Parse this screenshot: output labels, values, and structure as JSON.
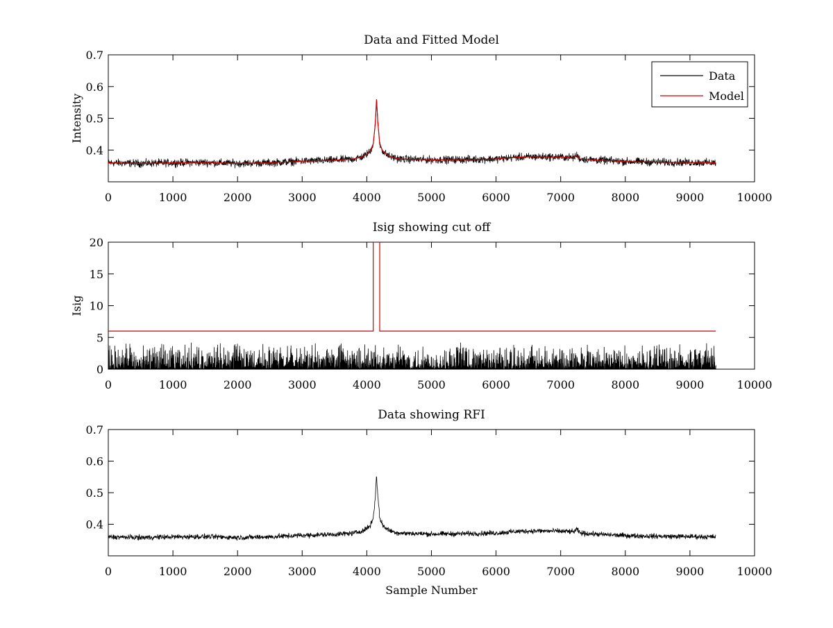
{
  "figure": {
    "background": "#ffffff"
  },
  "chart_data": [
    {
      "type": "line",
      "title": "Data and Fitted Model",
      "xlabel": "",
      "ylabel": "Intensity",
      "xlim": [
        0,
        10000
      ],
      "ylim": [
        0.3,
        0.7
      ],
      "xticks": [
        0,
        1000,
        2000,
        3000,
        4000,
        5000,
        6000,
        7000,
        8000,
        9000,
        10000
      ],
      "yticks": [
        0.4,
        0.5,
        0.6,
        0.7
      ],
      "legend_position": "top-right",
      "series": [
        {
          "name": "Data",
          "color": "#000000",
          "noise_amplitude": 0.006,
          "x": [
            0,
            500,
            1000,
            1500,
            2000,
            2500,
            3000,
            3500,
            3800,
            3950,
            4050,
            4100,
            4130,
            4150,
            4170,
            4200,
            4250,
            4350,
            4500,
            5000,
            5500,
            6000,
            6300,
            6600,
            7000,
            7200,
            7250,
            7300,
            7600,
            8000,
            8500,
            9000,
            9400
          ],
          "values": [
            0.36,
            0.358,
            0.36,
            0.361,
            0.358,
            0.36,
            0.365,
            0.368,
            0.372,
            0.38,
            0.395,
            0.42,
            0.48,
            0.56,
            0.49,
            0.42,
            0.395,
            0.38,
            0.372,
            0.369,
            0.37,
            0.372,
            0.377,
            0.379,
            0.378,
            0.376,
            0.384,
            0.372,
            0.368,
            0.364,
            0.362,
            0.361,
            0.36
          ]
        },
        {
          "name": "Model",
          "color": "#cc0000",
          "x": [
            0,
            500,
            1000,
            1500,
            2000,
            2500,
            3000,
            3500,
            3800,
            3950,
            4050,
            4100,
            4130,
            4150,
            4170,
            4200,
            4250,
            4350,
            4500,
            5000,
            5500,
            6000,
            6300,
            6600,
            7000,
            7200,
            7250,
            7300,
            7600,
            8000,
            8500,
            9000,
            9400
          ],
          "values": [
            0.36,
            0.358,
            0.36,
            0.361,
            0.358,
            0.36,
            0.365,
            0.368,
            0.372,
            0.38,
            0.395,
            0.42,
            0.48,
            0.56,
            0.49,
            0.42,
            0.395,
            0.38,
            0.372,
            0.369,
            0.37,
            0.372,
            0.377,
            0.379,
            0.378,
            0.376,
            0.384,
            0.372,
            0.368,
            0.364,
            0.362,
            0.361,
            0.36
          ]
        }
      ]
    },
    {
      "type": "line",
      "title": "Isig showing cut off",
      "xlabel": "",
      "ylabel": "Isig",
      "xlim": [
        0,
        10000
      ],
      "ylim": [
        0,
        20
      ],
      "xticks": [
        0,
        1000,
        2000,
        3000,
        4000,
        5000,
        6000,
        7000,
        8000,
        9000,
        10000
      ],
      "yticks": [
        0,
        5,
        10,
        15,
        20
      ],
      "series": [
        {
          "name": "Isig",
          "color": "#000000",
          "x_range": [
            0,
            9400
          ],
          "noise_max": 4.2,
          "noise_typical": 1.5
        },
        {
          "name": "Cut off",
          "color": "#cc0000",
          "x": [
            0,
            4100,
            4100,
            4200,
            4200,
            9400
          ],
          "values": [
            6,
            6,
            20,
            20,
            6,
            6
          ]
        }
      ]
    },
    {
      "type": "line",
      "title": "Data showing RFI",
      "xlabel": "Sample Number",
      "ylabel": "",
      "xlim": [
        0,
        10000
      ],
      "ylim": [
        0.3,
        0.7
      ],
      "xticks": [
        0,
        1000,
        2000,
        3000,
        4000,
        5000,
        6000,
        7000,
        8000,
        9000,
        10000
      ],
      "yticks": [
        0.4,
        0.5,
        0.6,
        0.7
      ],
      "series": [
        {
          "name": "Data",
          "color": "#000000",
          "noise_amplitude": 0.004,
          "x": [
            0,
            500,
            1000,
            1500,
            2000,
            2500,
            3000,
            3500,
            3800,
            3950,
            4050,
            4100,
            4130,
            4150,
            4170,
            4200,
            4250,
            4350,
            4500,
            5000,
            5500,
            6000,
            6300,
            6600,
            7000,
            7200,
            7250,
            7300,
            7600,
            8000,
            8500,
            9000,
            9400
          ],
          "values": [
            0.36,
            0.358,
            0.36,
            0.361,
            0.358,
            0.36,
            0.365,
            0.368,
            0.372,
            0.38,
            0.395,
            0.42,
            0.48,
            0.56,
            0.49,
            0.42,
            0.395,
            0.38,
            0.372,
            0.369,
            0.37,
            0.372,
            0.377,
            0.379,
            0.378,
            0.376,
            0.384,
            0.372,
            0.368,
            0.364,
            0.362,
            0.361,
            0.36
          ]
        }
      ]
    }
  ]
}
